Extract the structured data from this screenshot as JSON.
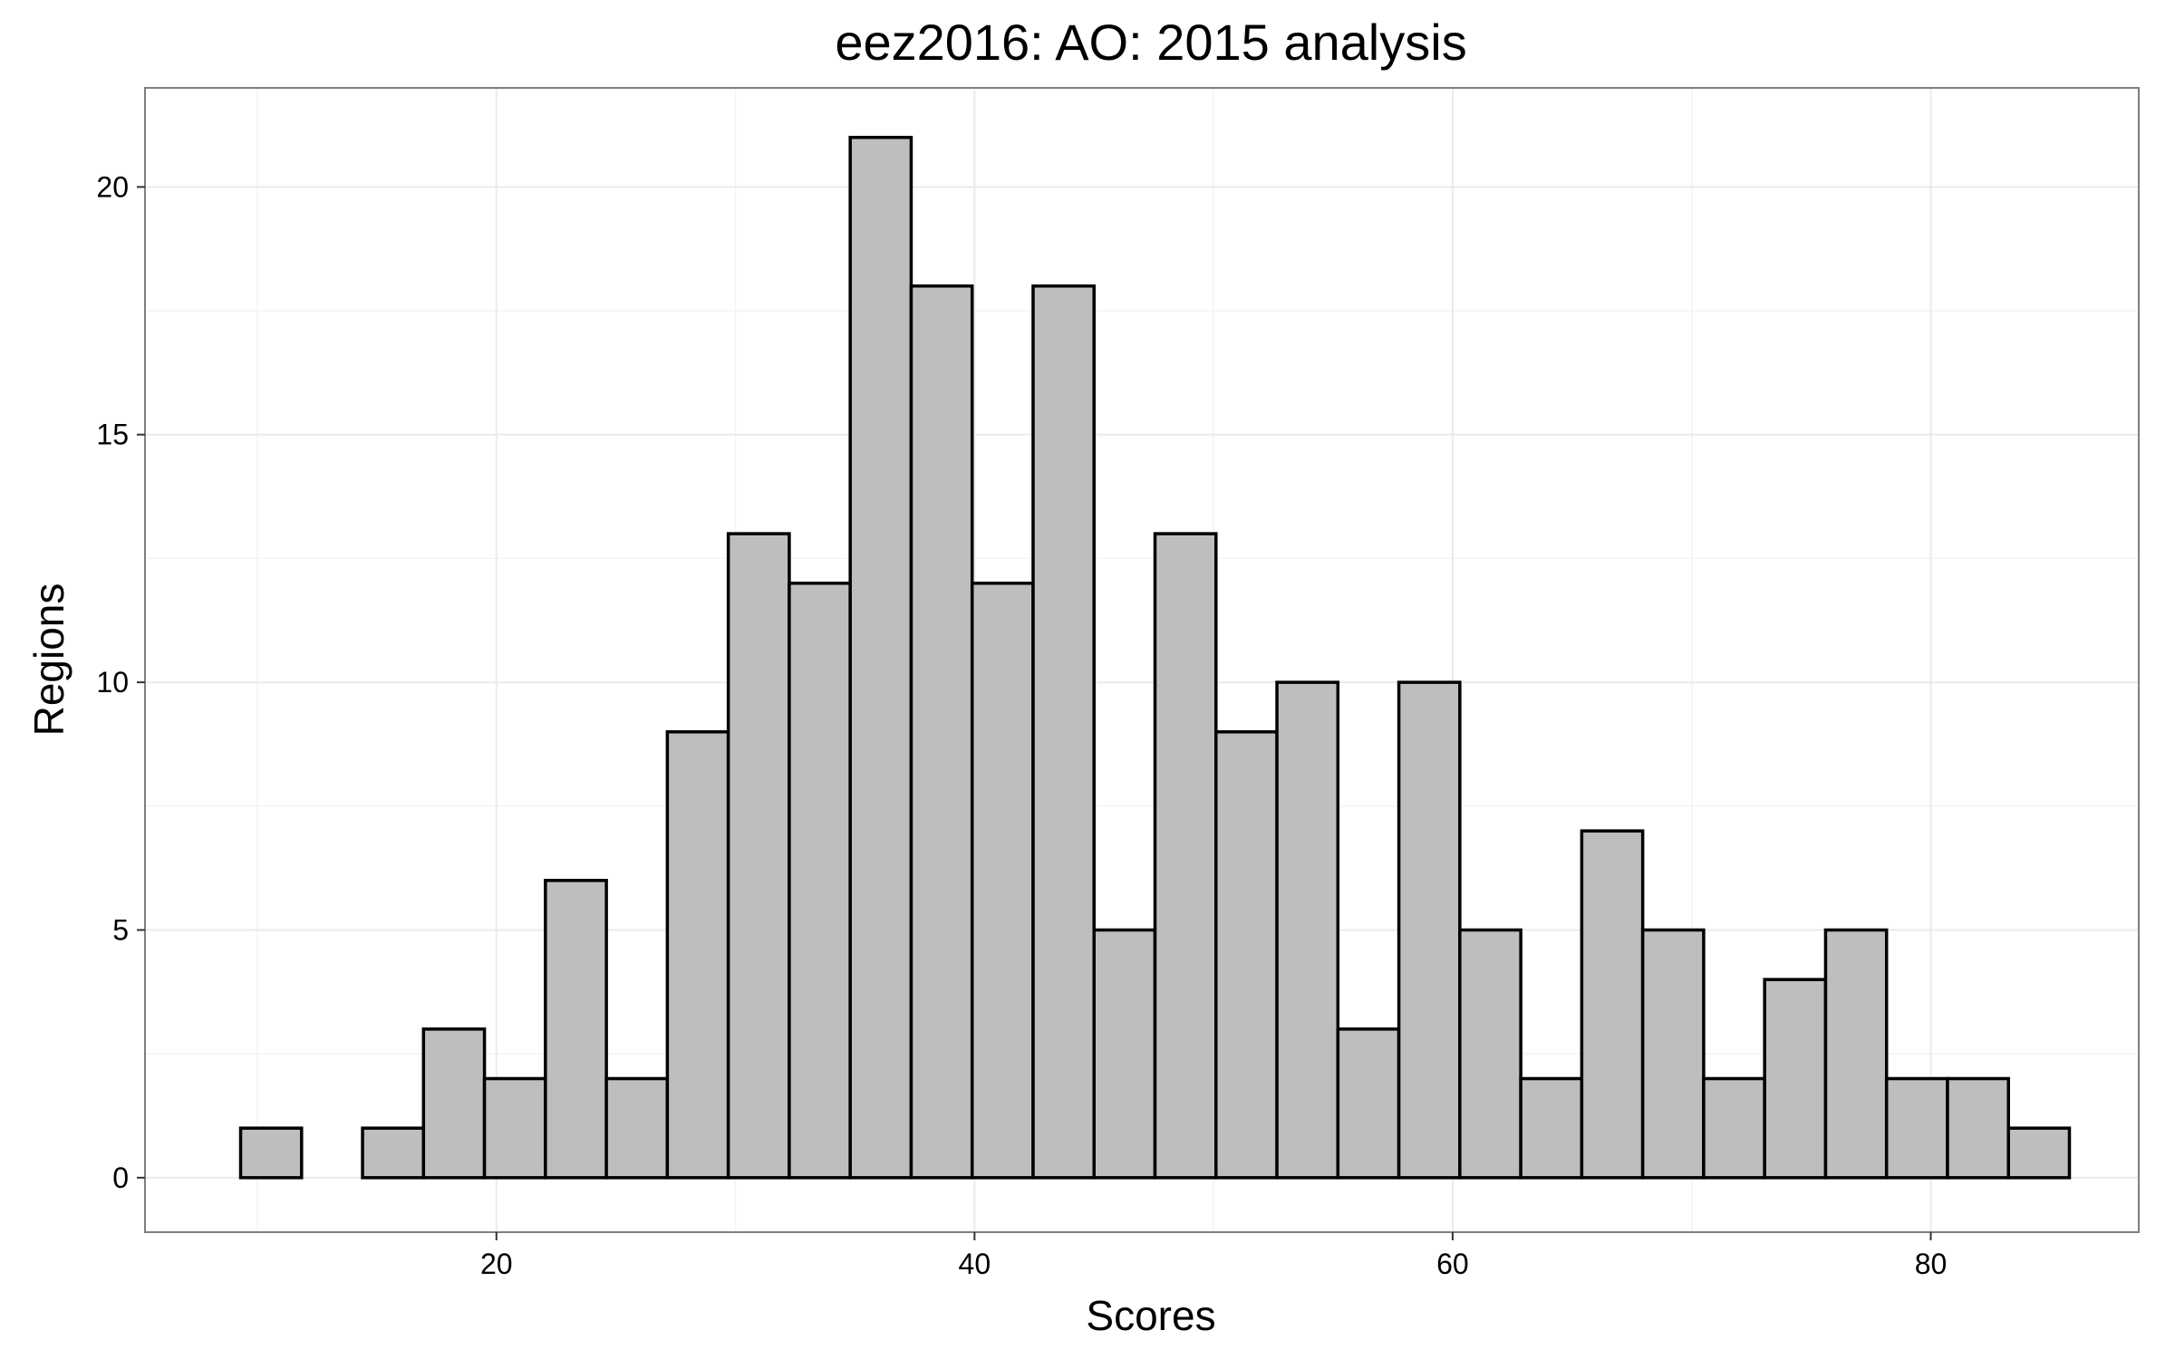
{
  "chart_data": {
    "type": "bar",
    "title": "eez2016: AO: 2015 analysis",
    "xlabel": "Scores",
    "ylabel": "Regions",
    "xlim": [
      5.3,
      88.7
    ],
    "ylim": [
      -1.1,
      22.0
    ],
    "xticks": [
      20,
      40,
      60,
      80
    ],
    "yticks": [
      0,
      5,
      10,
      15,
      20
    ],
    "bin_width": 2.55,
    "bin_start": 9.3,
    "values": [
      1,
      0,
      1,
      3,
      2,
      6,
      2,
      9,
      13,
      12,
      21,
      18,
      12,
      18,
      5,
      13,
      9,
      10,
      3,
      10,
      5,
      2,
      7,
      5,
      2,
      4,
      5,
      2,
      2,
      1
    ],
    "grid": true,
    "colors": {
      "bar_fill": "#bebebe",
      "bar_stroke": "#000000",
      "grid": "#ebebeb",
      "border": "#7f7f7f"
    }
  }
}
